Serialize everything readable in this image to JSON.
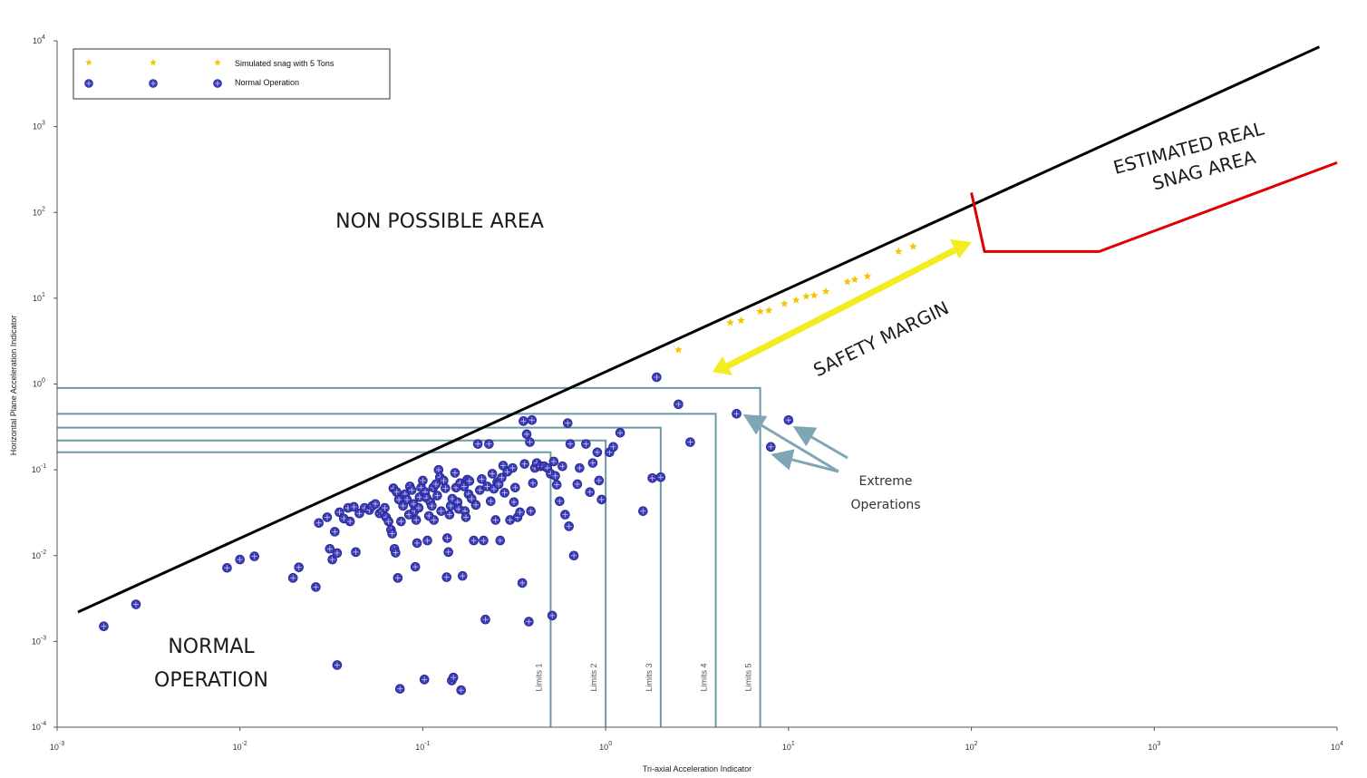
{
  "chart_data": {
    "type": "scatter",
    "xscale": "log",
    "yscale": "log",
    "xlim": [
      0.001,
      10000
    ],
    "ylim": [
      0.0001,
      10000
    ],
    "xlabel": "Tri-axial Acceleration Indicator",
    "ylabel": "Horizontal Plane Acceleration Indicator",
    "x_ticks": [
      {
        "base": "10",
        "exp": "-3"
      },
      {
        "base": "10",
        "exp": "-2"
      },
      {
        "base": "10",
        "exp": "-1"
      },
      {
        "base": "10",
        "exp": "0"
      },
      {
        "base": "10",
        "exp": "1"
      },
      {
        "base": "10",
        "exp": "2"
      },
      {
        "base": "10",
        "exp": "3"
      },
      {
        "base": "10",
        "exp": "4"
      }
    ],
    "y_ticks": [
      {
        "base": "10",
        "exp": "-4"
      },
      {
        "base": "10",
        "exp": "-3"
      },
      {
        "base": "10",
        "exp": "-2"
      },
      {
        "base": "10",
        "exp": "-1"
      },
      {
        "base": "10",
        "exp": "0"
      },
      {
        "base": "10",
        "exp": "1"
      },
      {
        "base": "10",
        "exp": "2"
      },
      {
        "base": "10",
        "exp": "3"
      },
      {
        "base": "10",
        "exp": "4"
      }
    ],
    "legend": {
      "position": "top-left",
      "entries": [
        {
          "label": "Simulated snag with 5 Tons",
          "color": "#f5c400",
          "marker": "star"
        },
        {
          "label": "Normal Operation",
          "color": "#3b3bb8",
          "marker": "circle"
        }
      ]
    },
    "series": [
      {
        "name": "Simulated snag with 5 Tons",
        "color": "#f5c400",
        "points": [
          [
            2.5,
            2.5
          ],
          [
            4.8,
            5.2
          ],
          [
            5.5,
            5.5
          ],
          [
            7.0,
            7.0
          ],
          [
            7.8,
            7.2
          ],
          [
            9.5,
            8.6
          ],
          [
            11.0,
            9.5
          ],
          [
            12.5,
            10.5
          ],
          [
            13.8,
            10.8
          ],
          [
            16.0,
            12.0
          ],
          [
            21.0,
            15.5
          ],
          [
            23.0,
            16.5
          ],
          [
            27.0,
            18.0
          ],
          [
            40.0,
            35.0
          ],
          [
            48.0,
            40.0
          ]
        ]
      },
      {
        "name": "Normal Operation",
        "color": "#3b3bb8",
        "points": [
          [
            0.0018,
            0.0015
          ],
          [
            0.0027,
            0.0027
          ],
          [
            0.0085,
            0.0072
          ],
          [
            0.01,
            0.009
          ],
          [
            0.012,
            0.0098
          ],
          [
            0.0195,
            0.0055
          ],
          [
            0.021,
            0.0073
          ],
          [
            0.026,
            0.0043
          ],
          [
            0.027,
            0.024
          ],
          [
            0.03,
            0.028
          ],
          [
            0.031,
            0.012
          ],
          [
            0.032,
            0.009
          ],
          [
            0.033,
            0.019
          ],
          [
            0.034,
            0.0107
          ],
          [
            0.034,
            0.00053
          ],
          [
            0.035,
            0.032
          ],
          [
            0.037,
            0.027
          ],
          [
            0.039,
            0.036
          ],
          [
            0.04,
            0.025
          ],
          [
            0.042,
            0.037
          ],
          [
            0.043,
            0.011
          ],
          [
            0.045,
            0.031
          ],
          [
            0.048,
            0.036
          ],
          [
            0.051,
            0.034
          ],
          [
            0.053,
            0.038
          ],
          [
            0.055,
            0.04
          ],
          [
            0.058,
            0.031
          ],
          [
            0.06,
            0.033
          ],
          [
            0.062,
            0.036
          ],
          [
            0.063,
            0.028
          ],
          [
            0.065,
            0.025
          ],
          [
            0.067,
            0.02
          ],
          [
            0.068,
            0.018
          ],
          [
            0.069,
            0.061
          ],
          [
            0.07,
            0.012
          ],
          [
            0.071,
            0.0108
          ],
          [
            0.072,
            0.055
          ],
          [
            0.073,
            0.0055
          ],
          [
            0.074,
            0.045
          ],
          [
            0.075,
            0.00028
          ],
          [
            0.076,
            0.025
          ],
          [
            0.078,
            0.038
          ],
          [
            0.08,
            0.052
          ],
          [
            0.082,
            0.045
          ],
          [
            0.084,
            0.03
          ],
          [
            0.085,
            0.064
          ],
          [
            0.087,
            0.058
          ],
          [
            0.089,
            0.04
          ],
          [
            0.09,
            0.033
          ],
          [
            0.091,
            0.0074
          ],
          [
            0.092,
            0.026
          ],
          [
            0.093,
            0.014
          ],
          [
            0.095,
            0.036
          ],
          [
            0.096,
            0.048
          ],
          [
            0.098,
            0.062
          ],
          [
            0.1,
            0.075
          ],
          [
            0.102,
            0.00036
          ],
          [
            0.103,
            0.055
          ],
          [
            0.105,
            0.047
          ],
          [
            0.106,
            0.015
          ],
          [
            0.108,
            0.029
          ],
          [
            0.11,
            0.042
          ],
          [
            0.112,
            0.038
          ],
          [
            0.114,
            0.062
          ],
          [
            0.115,
            0.026
          ],
          [
            0.118,
            0.068
          ],
          [
            0.12,
            0.05
          ],
          [
            0.122,
            0.1
          ],
          [
            0.124,
            0.082
          ],
          [
            0.126,
            0.033
          ],
          [
            0.13,
            0.075
          ],
          [
            0.133,
            0.061
          ],
          [
            0.135,
            0.0056
          ],
          [
            0.136,
            0.016
          ],
          [
            0.138,
            0.011
          ],
          [
            0.14,
            0.03
          ],
          [
            0.142,
            0.038
          ],
          [
            0.144,
            0.00035
          ],
          [
            0.145,
            0.046
          ],
          [
            0.147,
            0.00038
          ],
          [
            0.15,
            0.092
          ],
          [
            0.152,
            0.062
          ],
          [
            0.155,
            0.042
          ],
          [
            0.157,
            0.035
          ],
          [
            0.16,
            0.07
          ],
          [
            0.162,
            0.00027
          ],
          [
            0.165,
            0.0058
          ],
          [
            0.168,
            0.064
          ],
          [
            0.17,
            0.033
          ],
          [
            0.172,
            0.028
          ],
          [
            0.175,
            0.077
          ],
          [
            0.178,
            0.052
          ],
          [
            0.18,
            0.074
          ],
          [
            0.185,
            0.046
          ],
          [
            0.19,
            0.015
          ],
          [
            0.195,
            0.039
          ],
          [
            0.2,
            0.2
          ],
          [
            0.205,
            0.058
          ],
          [
            0.21,
            0.078
          ],
          [
            0.215,
            0.015
          ],
          [
            0.22,
            0.0018
          ],
          [
            0.225,
            0.064
          ],
          [
            0.23,
            0.2
          ],
          [
            0.235,
            0.043
          ],
          [
            0.24,
            0.09
          ],
          [
            0.245,
            0.06
          ],
          [
            0.25,
            0.026
          ],
          [
            0.255,
            0.072
          ],
          [
            0.26,
            0.068
          ],
          [
            0.265,
            0.015
          ],
          [
            0.27,
            0.081
          ],
          [
            0.275,
            0.112
          ],
          [
            0.28,
            0.054
          ],
          [
            0.29,
            0.095
          ],
          [
            0.3,
            0.026
          ],
          [
            0.31,
            0.105
          ],
          [
            0.315,
            0.042
          ],
          [
            0.32,
            0.062
          ],
          [
            0.33,
            0.028
          ],
          [
            0.34,
            0.032
          ],
          [
            0.35,
            0.0048
          ],
          [
            0.355,
            0.37
          ],
          [
            0.36,
            0.117
          ],
          [
            0.37,
            0.26
          ],
          [
            0.38,
            0.0017
          ],
          [
            0.385,
            0.21
          ],
          [
            0.39,
            0.033
          ],
          [
            0.395,
            0.38
          ],
          [
            0.4,
            0.07
          ],
          [
            0.41,
            0.105
          ],
          [
            0.42,
            0.12
          ],
          [
            0.44,
            0.11
          ],
          [
            0.46,
            0.11
          ],
          [
            0.48,
            0.105
          ],
          [
            0.5,
            0.09
          ],
          [
            0.51,
            0.002
          ],
          [
            0.52,
            0.125
          ],
          [
            0.53,
            0.085
          ],
          [
            0.54,
            0.067
          ],
          [
            0.56,
            0.043
          ],
          [
            0.58,
            0.11
          ],
          [
            0.6,
            0.03
          ],
          [
            0.62,
            0.35
          ],
          [
            0.63,
            0.022
          ],
          [
            0.64,
            0.2
          ],
          [
            0.67,
            0.01
          ],
          [
            0.7,
            0.068
          ],
          [
            0.72,
            0.105
          ],
          [
            0.78,
            0.2
          ],
          [
            0.82,
            0.055
          ],
          [
            0.85,
            0.12
          ],
          [
            0.9,
            0.16
          ],
          [
            0.92,
            0.075
          ],
          [
            0.95,
            0.045
          ],
          [
            1.05,
            0.16
          ],
          [
            1.1,
            0.185
          ],
          [
            1.2,
            0.27
          ],
          [
            1.6,
            0.033
          ],
          [
            1.8,
            0.08
          ],
          [
            2.0,
            0.082
          ],
          [
            2.5,
            0.58
          ],
          [
            2.9,
            0.21
          ],
          [
            1.9,
            1.2
          ],
          [
            5.2,
            0.45
          ],
          [
            8.0,
            0.185
          ],
          [
            10.0,
            0.38
          ]
        ]
      }
    ],
    "boundary_line": {
      "from": [
        0.0013,
        0.0022
      ],
      "to": [
        8000,
        8500
      ],
      "color": "#000000"
    },
    "snag_boundary": {
      "points": [
        [
          100,
          170
        ],
        [
          118,
          35
        ],
        [
          500,
          35
        ],
        [
          10000,
          380
        ]
      ],
      "color": "#e00000"
    },
    "limits": [
      {
        "label": "Limits 1",
        "x": 0.5,
        "y": 0.16
      },
      {
        "label": "Limits 2",
        "x": 1.0,
        "y": 0.22
      },
      {
        "label": "Limits 3",
        "x": 2.0,
        "y": 0.31
      },
      {
        "label": "Limits 4",
        "x": 4.0,
        "y": 0.45
      },
      {
        "label": "Limits 5",
        "x": 7.0,
        "y": 0.9
      }
    ],
    "limit_color": "#6a99a8",
    "annotations": {
      "non_possible": "NON POSSIBLE AREA",
      "snag_area_line1": "ESTIMATED REAL",
      "snag_area_line2": "SNAG AREA",
      "safety_margin": "SAFETY MARGIN",
      "normal_line1": "NORMAL",
      "normal_line2": "OPERATION",
      "extreme_line1": "Extreme",
      "extreme_line2": "Operations"
    }
  }
}
